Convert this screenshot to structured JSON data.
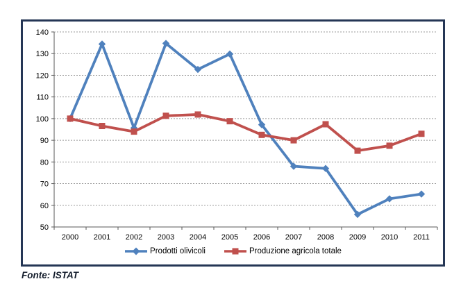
{
  "figure": {
    "source_note": "Fonte: ISTAT"
  },
  "style": {
    "panel_border_color": "#253655",
    "axis_color": "#595959",
    "gridline_color": "#999999",
    "background": "#ffffff"
  },
  "chart_data": {
    "type": "line",
    "categories": [
      "2000",
      "2001",
      "2002",
      "2003",
      "2004",
      "2005",
      "2006",
      "2007",
      "2008",
      "2009",
      "2010",
      "2011"
    ],
    "series": [
      {
        "name": "Prodotti olivicoli",
        "color": "#4F81BD",
        "marker": "diamond",
        "values": [
          100,
          134.4,
          95.7,
          134.7,
          122.7,
          129.8,
          97.2,
          78.0,
          77.0,
          55.8,
          63.0,
          65.2
        ]
      },
      {
        "name": "Produzione agricola totale",
        "color": "#C0504D",
        "marker": "square",
        "values": [
          100,
          96.6,
          94.0,
          101.3,
          101.9,
          98.8,
          92.5,
          90.0,
          97.4,
          85.2,
          87.5,
          93.0
        ]
      }
    ],
    "title": "",
    "xlabel": "",
    "ylabel": "",
    "ylim": [
      50,
      140
    ],
    "ytick_step": 10,
    "grid": "horizontal-dashed",
    "legend_position": "bottom"
  }
}
